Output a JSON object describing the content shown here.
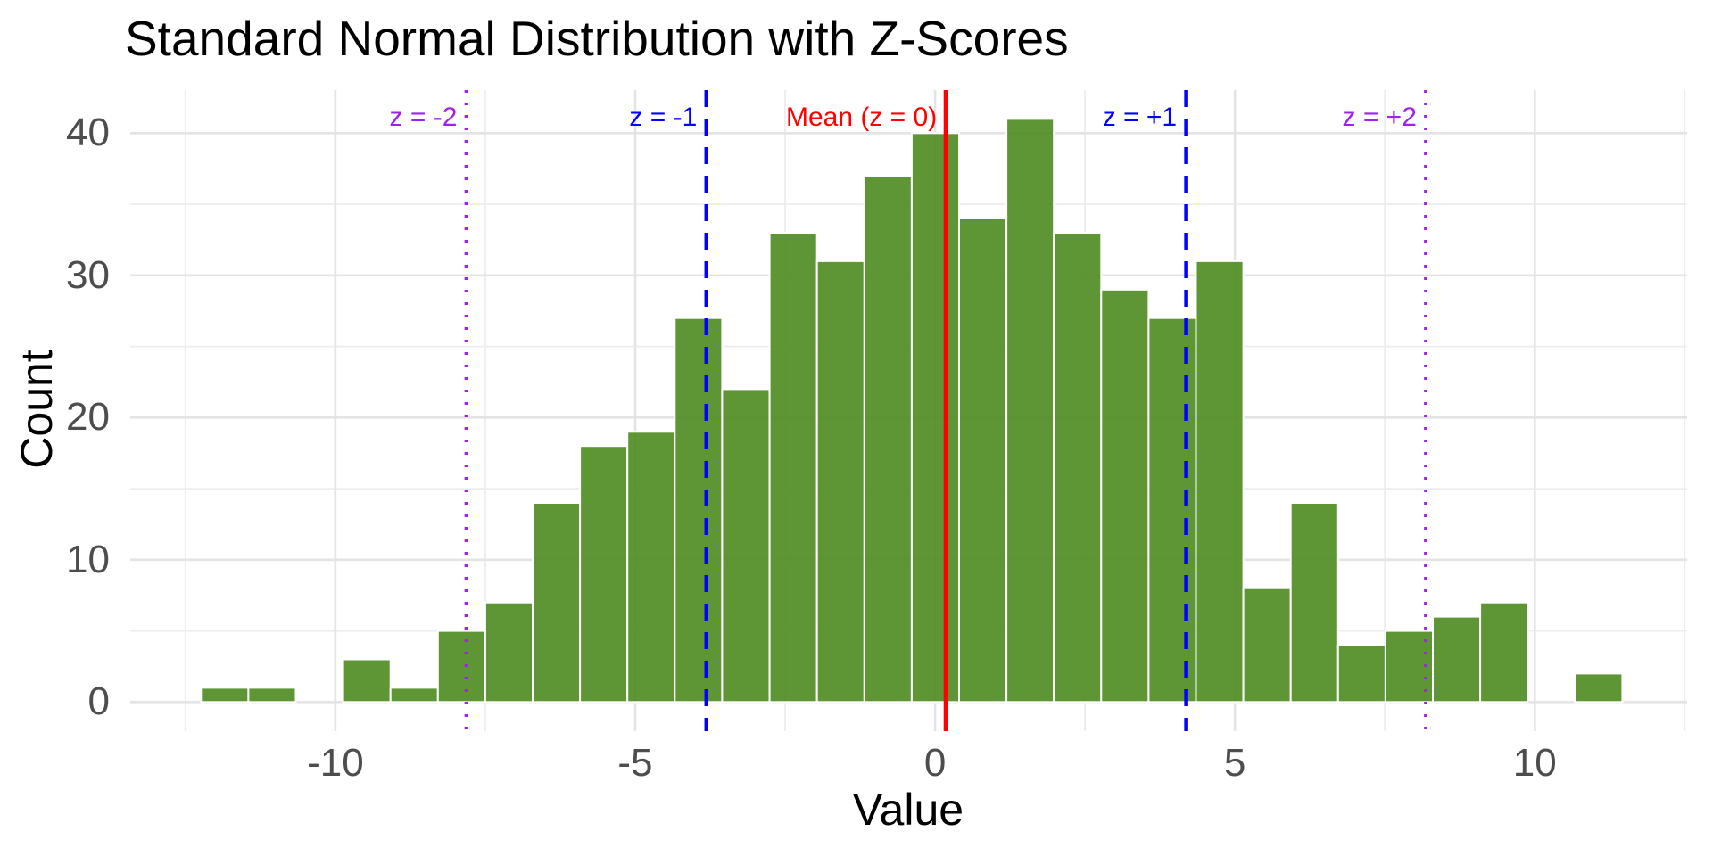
{
  "chart_data": {
    "type": "bar",
    "subtype": "histogram",
    "title": "Standard Normal Distribution with Z-Scores",
    "xlabel": "Value",
    "ylabel": "Count",
    "total_n": 500,
    "bin_start": -12.24,
    "bin_width": 0.79,
    "counts": [
      1,
      1,
      0,
      3,
      1,
      5,
      7,
      14,
      18,
      19,
      27,
      22,
      33,
      31,
      37,
      40,
      34,
      41,
      33,
      29,
      27,
      31,
      8,
      14,
      4,
      5,
      6,
      7,
      0,
      2
    ],
    "xlim": [
      -13.42,
      12.54
    ],
    "ylim": [
      -2.05,
      43.03
    ],
    "grid": true,
    "legend": "none",
    "x_ticks": [
      {
        "v": -10,
        "label": "-10"
      },
      {
        "v": -5,
        "label": "-5"
      },
      {
        "v": 0,
        "label": "0"
      },
      {
        "v": 5,
        "label": "5"
      },
      {
        "v": 10,
        "label": "10"
      }
    ],
    "x_minor": [
      -12.5,
      -7.5,
      -2.5,
      2.5,
      7.5,
      12.5
    ],
    "y_ticks": [
      {
        "v": 0,
        "label": "0"
      },
      {
        "v": 10,
        "label": "10"
      },
      {
        "v": 20,
        "label": "20"
      },
      {
        "v": 30,
        "label": "30"
      },
      {
        "v": 40,
        "label": "40"
      }
    ],
    "y_minor": [
      5,
      15,
      25,
      35
    ],
    "mean": 0.18,
    "sd": 4.0,
    "vlines": [
      {
        "z": "-2",
        "value": -7.82,
        "label": "z = -2",
        "color": "#A020F0",
        "style": "dotted"
      },
      {
        "z": "-1",
        "value": -3.82,
        "label": "z = -1",
        "color": "#0000FF",
        "style": "dashed"
      },
      {
        "z": "0",
        "value": 0.18,
        "label": "Mean (z = 0)",
        "color": "#FF0000",
        "style": "solid"
      },
      {
        "z": "+1",
        "value": 4.18,
        "label": "z = +1",
        "color": "#0000FF",
        "style": "dashed"
      },
      {
        "z": "+2",
        "value": 8.18,
        "label": "z = +2",
        "color": "#A020F0",
        "style": "dotted"
      }
    ],
    "colors": {
      "bar_fill": "#4D8B20",
      "bar_border": "#FFFFFF",
      "grid_major": "#E4E4E4",
      "grid_minor": "#EDEDED",
      "tick_text": "#4D4D4D",
      "title_text": "#000000"
    }
  }
}
